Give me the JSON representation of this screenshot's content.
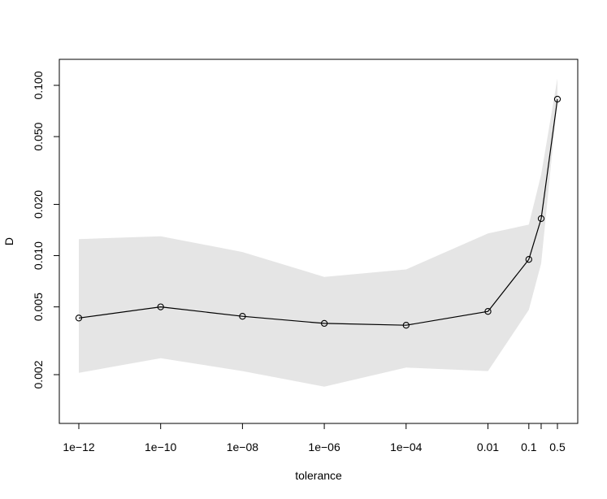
{
  "chart_data": {
    "type": "line",
    "xlabel": "tolerance",
    "ylabel": "D",
    "x_scale": "log",
    "y_scale": "log",
    "x_ticks": [
      {
        "value": 1e-12,
        "label": "1e−12"
      },
      {
        "value": 1e-10,
        "label": "1e−10"
      },
      {
        "value": 1e-08,
        "label": "1e−08"
      },
      {
        "value": 1e-06,
        "label": "1e−06"
      },
      {
        "value": 0.0001,
        "label": "1e−04"
      },
      {
        "value": 0.01,
        "label": "0.01"
      },
      {
        "value": 0.1,
        "label": "0.1"
      },
      {
        "value": 0.2,
        "label": ""
      },
      {
        "value": 0.5,
        "label": "0.5"
      }
    ],
    "y_ticks": [
      {
        "value": 0.002,
        "label": "0.002"
      },
      {
        "value": 0.005,
        "label": "0.005"
      },
      {
        "value": 0.01,
        "label": "0.010"
      },
      {
        "value": 0.02,
        "label": "0.020"
      },
      {
        "value": 0.05,
        "label": "0.050"
      },
      {
        "value": 0.1,
        "label": "0.100"
      }
    ],
    "xlim": [
      5e-13,
      1
    ],
    "ylim": [
      0.00125,
      0.135
    ],
    "series": [
      {
        "x": [
          1e-12,
          1e-10,
          1e-08,
          1e-06,
          0.0001,
          0.01,
          0.1,
          0.2,
          0.5
        ],
        "y": [
          0.0043,
          0.005,
          0.0044,
          0.004,
          0.0039,
          0.0047,
          0.0095,
          0.0165,
          0.083
        ],
        "lower": [
          0.00205,
          0.0025,
          0.0021,
          0.0017,
          0.0022,
          0.0021,
          0.0048,
          0.009,
          0.082
        ],
        "upper": [
          0.0125,
          0.013,
          0.0105,
          0.0075,
          0.0083,
          0.0135,
          0.0152,
          0.03,
          0.11
        ]
      }
    ],
    "colors": {
      "band": "#e5e5e5",
      "line": "#000000"
    },
    "grid": false,
    "legend": "none"
  }
}
